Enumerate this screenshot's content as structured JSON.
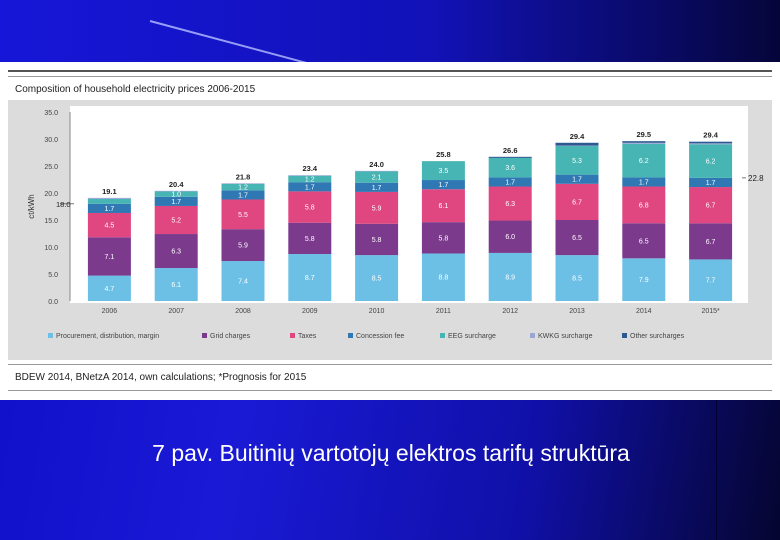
{
  "slide": {
    "caption": "7 pav. Buitinių vartotojų elektros tarifų struktūra"
  },
  "figure": {
    "title": "Composition of household electricity prices 2006-2015",
    "source": "BDEW 2014, BNetzA 2014, own calculations; *Prognosis for 2015"
  },
  "chart_data": {
    "type": "bar",
    "stacked": true,
    "title": "Composition of household electricity prices 2006-2015",
    "ylabel": "ct/kWh",
    "ylim": [
      0,
      35
    ],
    "yticks": [
      "0.0",
      "5.0",
      "10.0",
      "15.0",
      "20.0",
      "25.0",
      "30.0",
      "35.0"
    ],
    "categories": [
      "2006",
      "2007",
      "2008",
      "2009",
      "2010",
      "2011",
      "2012",
      "2013",
      "2014",
      "2015*"
    ],
    "totals": [
      "19.1",
      "20.4",
      "21.8",
      "23.4",
      "24.0",
      "25.8",
      "26.6",
      "29.4",
      "29.5",
      "29.4"
    ],
    "reference_lines": [
      {
        "label": "18.0",
        "value": 18.0,
        "side": "left"
      },
      {
        "label": "22.8",
        "value": 22.8,
        "side": "right"
      }
    ],
    "series": [
      {
        "name": "Procurement, distribution, margin",
        "color": "#6cc0e6",
        "values": [
          4.7,
          6.1,
          7.4,
          8.7,
          8.5,
          8.8,
          8.9,
          8.5,
          7.9,
          7.7
        ],
        "labels": [
          "4.7",
          "6.1",
          "7.4",
          "8.7",
          "8.5",
          "8.8",
          "8.9",
          "8.5",
          "7.9",
          "7.7"
        ]
      },
      {
        "name": "Grid charges",
        "color": "#7b3a8c",
        "values": [
          7.1,
          6.3,
          5.9,
          5.8,
          5.8,
          5.8,
          6.0,
          6.5,
          6.5,
          6.7
        ],
        "labels": [
          "7.1",
          "6.3",
          "5.9",
          "5.8",
          "5.8",
          "5.8",
          "6.0",
          "6.5",
          "6.5",
          "6.7"
        ]
      },
      {
        "name": "Taxes",
        "color": "#e0467f",
        "values": [
          4.5,
          5.2,
          5.5,
          5.8,
          5.9,
          6.1,
          6.3,
          6.7,
          6.8,
          6.7
        ],
        "labels": [
          "4.5",
          "5.2",
          "5.5",
          "5.8",
          "5.9",
          "6.1",
          "6.3",
          "6.7",
          "6.8",
          "6.7"
        ]
      },
      {
        "name": "Concession fee",
        "color": "#2f78b3",
        "values": [
          1.7,
          1.7,
          1.7,
          1.7,
          1.7,
          1.7,
          1.7,
          1.7,
          1.7,
          1.7
        ],
        "labels": [
          "1.7",
          "1.7",
          "1.7",
          "1.7",
          "1.7",
          "1.7",
          "1.7",
          "1.7",
          "1.7",
          "1.7"
        ]
      },
      {
        "name": "EEG surcharge",
        "color": "#46b5b3",
        "values": [
          0.9,
          1.0,
          1.2,
          1.2,
          2.1,
          3.5,
          3.6,
          5.3,
          6.2,
          6.2
        ],
        "labels": [
          "0.9",
          "1.0",
          "1.2",
          "1.2",
          "2.1",
          "3.5",
          "3.6",
          "5.3",
          "6.2",
          "6.2"
        ]
      },
      {
        "name": "KWKG surcharge",
        "color": "#9aa6d6",
        "values": [
          0.2,
          0.1,
          0.1,
          0.1,
          0.1,
          0.0,
          0.0,
          0.1,
          0.2,
          0.2
        ],
        "labels": []
      },
      {
        "name": "Other surcharges",
        "color": "#2a5a90",
        "values": [
          0,
          0,
          0,
          0,
          0,
          0,
          0.2,
          0.5,
          0.3,
          0.3
        ],
        "labels": []
      }
    ],
    "legend_position": "bottom"
  }
}
